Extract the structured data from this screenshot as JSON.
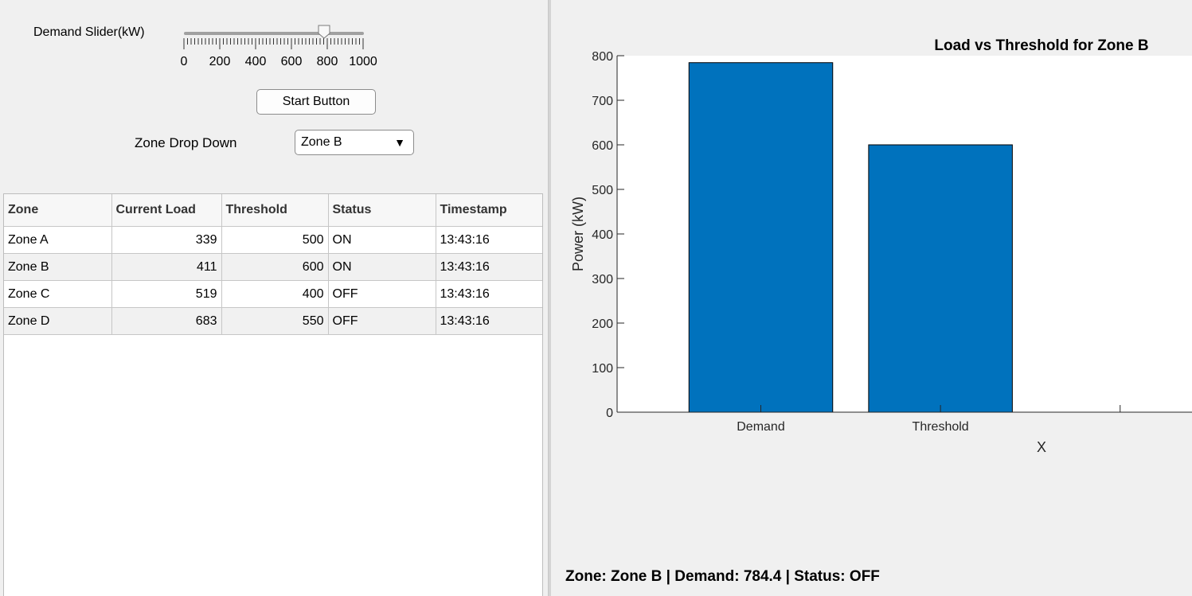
{
  "controls": {
    "slider_label": "Demand Slider(kW)",
    "slider_value": 784.4,
    "slider_min": 0,
    "slider_max": 1000,
    "slider_tick_labels": [
      "0",
      "200",
      "400",
      "600",
      "800",
      "1000"
    ],
    "start_button_label": "Start Button",
    "dropdown_label": "Zone Drop Down",
    "dropdown_selected": "Zone B"
  },
  "table": {
    "columns": [
      "Zone",
      "Current Load",
      "Threshold",
      "Status",
      "Timestamp"
    ],
    "rows": [
      [
        "Zone A",
        "339",
        "500",
        "ON",
        "13:43:16"
      ],
      [
        "Zone B",
        "411",
        "600",
        "ON",
        "13:43:16"
      ],
      [
        "Zone C",
        "519",
        "400",
        "OFF",
        "13:43:16"
      ],
      [
        "Zone D",
        "683",
        "550",
        "OFF",
        "13:43:16"
      ]
    ]
  },
  "chart_data": {
    "type": "bar",
    "title": "Load vs Threshold for Zone B",
    "categories": [
      "Demand",
      "Threshold"
    ],
    "values": [
      784.4,
      600
    ],
    "xlabel": "X",
    "ylabel": "Power (kW)",
    "ylim": [
      0,
      800
    ],
    "yticks": [
      0,
      100,
      200,
      300,
      400,
      500,
      600,
      700,
      800
    ],
    "bar_color": "#0072bd",
    "grid": false
  },
  "status_line": "Zone: Zone B | Demand: 784.4 | Status: OFF"
}
